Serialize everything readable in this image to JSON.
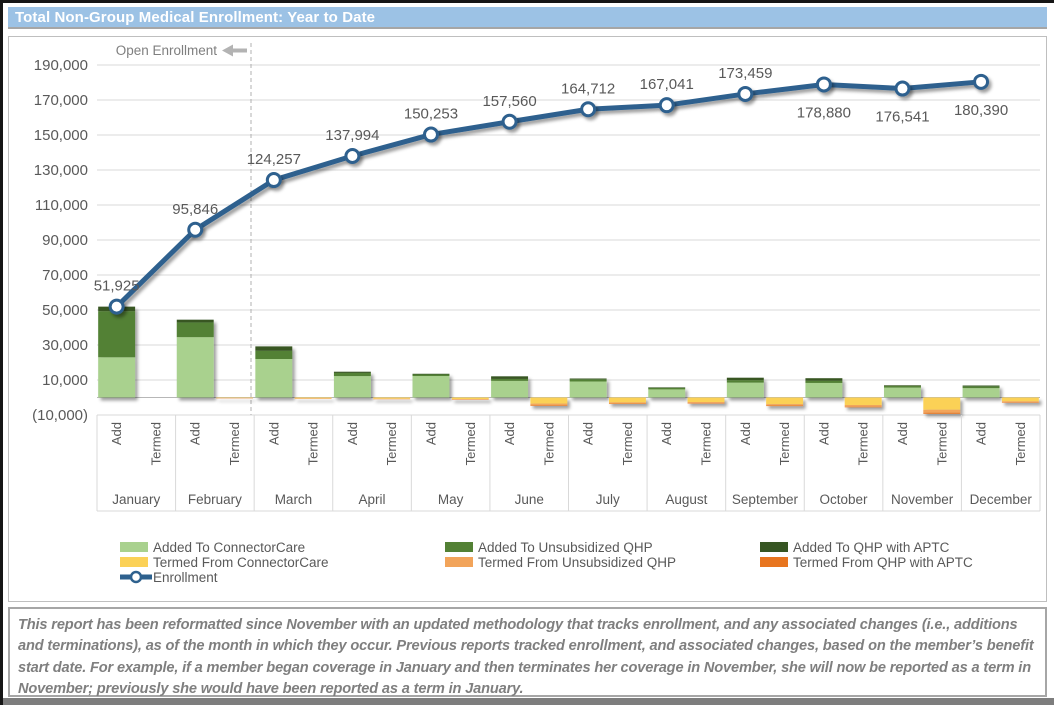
{
  "title_bar": {
    "title": "Total Non-Group Medical Enrollment: Year to Date"
  },
  "footer": {
    "text": "This report has been reformatted since November with an updated methodology that tracks enrollment, and any associated changes (i.e., additions and terminations), as of the month in which they occur.  Previous reports tracked enrollment, and associated changes, based on the member’s benefit start date.  For example, if a member began coverage in January and then terminates her coverage in November, she will now be reported as a term in November; previously she would have been reported as a term in January."
  },
  "colors": {
    "title_bg": "#9cc2e5",
    "title_text": "#ffffff",
    "gridline": "#d9d9d9",
    "zero_line": "#b7b7b7",
    "axis_text": "#595959",
    "data_label_text": "#595959",
    "annotation_text": "#7f7f7f",
    "annotation_arrow": "#b3b3b3",
    "dashed_line": "#b0b0b0",
    "panel_border": "#bfbfbf",
    "footer_border": "#a6a6a6",
    "footer_text": "#7f7f7f"
  },
  "chart_data": {
    "type": "combo: stacked-bar + line",
    "months": [
      "January",
      "February",
      "March",
      "April",
      "May",
      "June",
      "July",
      "August",
      "September",
      "October",
      "November",
      "December"
    ],
    "categories_per_month": [
      "Add",
      "Termed"
    ],
    "annotation": {
      "text": "Open Enrollment"
    },
    "y_axis": {
      "min": -10000,
      "max": 190000,
      "tick_step": 20000,
      "ticks": [
        {
          "value": 190000,
          "label": "190,000"
        },
        {
          "value": 170000,
          "label": "170,000"
        },
        {
          "value": 150000,
          "label": "150,000"
        },
        {
          "value": 130000,
          "label": "130,000"
        },
        {
          "value": 110000,
          "label": "110,000"
        },
        {
          "value": 90000,
          "label": "90,000"
        },
        {
          "value": 70000,
          "label": "70,000"
        },
        {
          "value": 50000,
          "label": "50,000"
        },
        {
          "value": 30000,
          "label": "30,000"
        },
        {
          "value": 10000,
          "label": "10,000"
        },
        {
          "value": -10000,
          "label": "(10,000)"
        }
      ]
    },
    "series": [
      {
        "name": "Added To ConnectorCare",
        "type": "bar",
        "stack": "add",
        "color": "#a9d18e",
        "values": [
          23000,
          34500,
          22000,
          12237,
          12259,
          9507,
          9152,
          4629,
          8518,
          8321,
          5661,
          5349
        ]
      },
      {
        "name": "Added To Unsubsidized QHP",
        "type": "bar",
        "stack": "add",
        "color": "#538135",
        "values": [
          26325,
          8400,
          4700,
          1800,
          900,
          1100,
          1200,
          900,
          1400,
          1200,
          900,
          1000
        ]
      },
      {
        "name": "Added To QHP with APTC",
        "type": "bar",
        "stack": "add",
        "color": "#375623",
        "values": [
          2600,
          1571,
          2511,
          700,
          400,
          1500,
          500,
          300,
          1400,
          1500,
          400,
          500
        ]
      },
      {
        "name": "Termed From ConnectorCare",
        "type": "bar",
        "stack": "termed",
        "color": "#fbd157",
        "values": [
          0,
          -250,
          -500,
          -700,
          -900,
          -3500,
          -2800,
          -2600,
          -3800,
          -4300,
          -7000,
          -2200
        ]
      },
      {
        "name": "Termed From Unsubsidized QHP",
        "type": "bar",
        "stack": "termed",
        "color": "#f2a45a",
        "values": [
          0,
          -200,
          -200,
          -200,
          -300,
          -1000,
          -700,
          -700,
          -800,
          -1000,
          -1700,
          -600
        ]
      },
      {
        "name": "Termed From QHP with APTC",
        "type": "bar",
        "stack": "termed",
        "color": "#e8751f",
        "values": [
          0,
          -100,
          -100,
          -100,
          -100,
          -300,
          -200,
          -200,
          -300,
          -300,
          -600,
          -200
        ]
      },
      {
        "name": "Enrollment",
        "type": "line",
        "stack": null,
        "color": "#2e618e",
        "values": [
          51925,
          95846,
          124257,
          137994,
          150253,
          157560,
          164712,
          167041,
          173459,
          178880,
          176541,
          180390
        ],
        "label_position": [
          "above",
          "above",
          "above",
          "above",
          "above",
          "above",
          "above",
          "above",
          "above",
          "below",
          "below",
          "below"
        ]
      }
    ],
    "legend": {
      "position": "bottom",
      "items": [
        {
          "series": 0,
          "row": 0,
          "col": 0
        },
        {
          "series": 1,
          "row": 0,
          "col": 1
        },
        {
          "series": 2,
          "row": 0,
          "col": 2
        },
        {
          "series": 3,
          "row": 1,
          "col": 0
        },
        {
          "series": 4,
          "row": 1,
          "col": 1
        },
        {
          "series": 5,
          "row": 1,
          "col": 2
        },
        {
          "series": 6,
          "row": 2,
          "col": 0
        }
      ]
    },
    "open_enrollment_divider_after_month": "February",
    "grid": true
  }
}
